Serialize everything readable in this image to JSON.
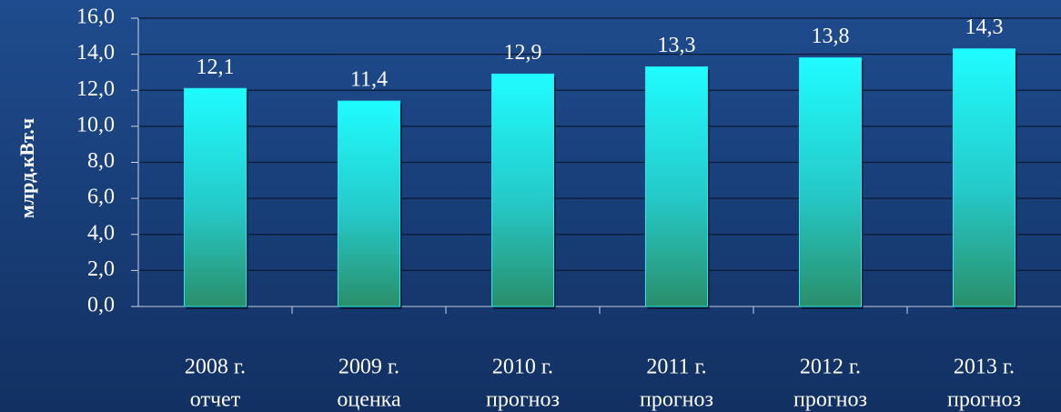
{
  "chart_data": {
    "type": "bar",
    "y_label": "млрд.кВт.ч",
    "categories": [
      [
        "2008 г.",
        "отчет"
      ],
      [
        "2009 г.",
        "оценка"
      ],
      [
        "2010 г.",
        "прогноз"
      ],
      [
        "2011 г.",
        "прогноз"
      ],
      [
        "2012 г.",
        "прогноз"
      ],
      [
        "2013 г.",
        "прогноз"
      ]
    ],
    "values": [
      12.1,
      11.4,
      12.9,
      13.3,
      13.8,
      14.3
    ],
    "value_labels": [
      "12,1",
      "11,4",
      "12,9",
      "13,3",
      "13,8",
      "14,3"
    ],
    "color": "#22e8f0",
    "ylim": [
      0,
      16
    ],
    "yticks": [
      {
        "value": 0,
        "label": "0,0"
      },
      {
        "value": 2,
        "label": "2,0"
      },
      {
        "value": 4,
        "label": "4,0"
      },
      {
        "value": 6,
        "label": "6,0"
      },
      {
        "value": 8,
        "label": "8,0"
      },
      {
        "value": 10,
        "label": "10,0"
      },
      {
        "value": 12,
        "label": "12,0"
      },
      {
        "value": 14,
        "label": "14,0"
      },
      {
        "value": 16,
        "label": "16,0"
      }
    ],
    "grid": true
  }
}
